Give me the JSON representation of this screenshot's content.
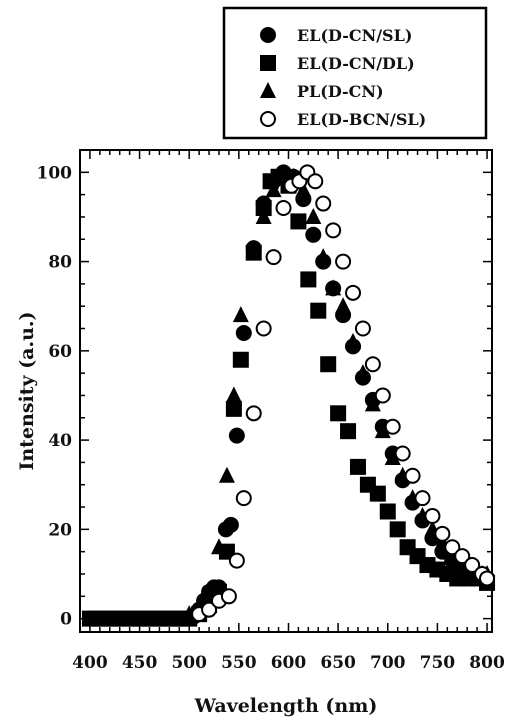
{
  "chart_data": {
    "type": "scatter",
    "xlabel": "Wavelength (nm)",
    "ylabel": "Intensity (a.u.)",
    "xlim": [
      390,
      805
    ],
    "ylim": [
      -3,
      105
    ],
    "x_ticks": [
      400,
      450,
      500,
      550,
      600,
      650,
      700,
      750,
      800
    ],
    "y_ticks": [
      0,
      20,
      40,
      60,
      80,
      100
    ],
    "grid": false,
    "legend_position": "top-right, above plot",
    "series": [
      {
        "name": "EL(D-CN/SL)",
        "marker": "filled-circle",
        "points": [
          [
            400,
            0
          ],
          [
            410,
            0
          ],
          [
            420,
            0
          ],
          [
            430,
            0
          ],
          [
            440,
            0
          ],
          [
            450,
            0
          ],
          [
            460,
            0
          ],
          [
            470,
            0
          ],
          [
            480,
            0
          ],
          [
            490,
            0
          ],
          [
            500,
            0
          ],
          [
            505,
            0.5
          ],
          [
            510,
            2
          ],
          [
            515,
            4
          ],
          [
            520,
            6
          ],
          [
            525,
            7
          ],
          [
            530,
            7
          ],
          [
            537,
            20
          ],
          [
            542,
            21
          ],
          [
            548,
            41
          ],
          [
            555,
            64
          ],
          [
            565,
            83
          ],
          [
            575,
            93
          ],
          [
            585,
            98
          ],
          [
            595,
            100
          ],
          [
            605,
            99
          ],
          [
            615,
            94
          ],
          [
            625,
            86
          ],
          [
            635,
            80
          ],
          [
            645,
            74
          ],
          [
            655,
            68
          ],
          [
            665,
            61
          ],
          [
            675,
            54
          ],
          [
            685,
            49
          ],
          [
            695,
            43
          ],
          [
            705,
            37
          ],
          [
            715,
            31
          ],
          [
            725,
            26
          ],
          [
            735,
            22
          ],
          [
            745,
            18
          ],
          [
            755,
            15
          ],
          [
            765,
            13
          ],
          [
            775,
            11
          ],
          [
            785,
            10
          ],
          [
            795,
            9
          ],
          [
            800,
            9
          ]
        ]
      },
      {
        "name": "EL(D-CN/DL)",
        "marker": "filled-square",
        "points": [
          [
            400,
            0
          ],
          [
            410,
            0
          ],
          [
            420,
            0
          ],
          [
            430,
            0
          ],
          [
            440,
            0
          ],
          [
            450,
            0
          ],
          [
            460,
            0
          ],
          [
            470,
            0
          ],
          [
            480,
            0
          ],
          [
            490,
            0
          ],
          [
            500,
            0
          ],
          [
            510,
            1
          ],
          [
            520,
            3
          ],
          [
            530,
            6
          ],
          [
            538,
            15
          ],
          [
            545,
            47
          ],
          [
            552,
            58
          ],
          [
            565,
            82
          ],
          [
            575,
            92
          ],
          [
            582,
            98
          ],
          [
            590,
            99
          ],
          [
            600,
            97
          ],
          [
            610,
            89
          ],
          [
            620,
            76
          ],
          [
            630,
            69
          ],
          [
            640,
            57
          ],
          [
            650,
            46
          ],
          [
            660,
            42
          ],
          [
            670,
            34
          ],
          [
            680,
            30
          ],
          [
            690,
            28
          ],
          [
            700,
            24
          ],
          [
            710,
            20
          ],
          [
            720,
            16
          ],
          [
            730,
            14
          ],
          [
            740,
            12
          ],
          [
            750,
            11
          ],
          [
            760,
            10
          ],
          [
            770,
            9
          ],
          [
            780,
            9
          ],
          [
            790,
            9
          ],
          [
            800,
            8
          ]
        ]
      },
      {
        "name": "PL(D-CN)",
        "marker": "filled-triangle",
        "points": [
          [
            500,
            1
          ],
          [
            510,
            2
          ],
          [
            520,
            3
          ],
          [
            530,
            16
          ],
          [
            538,
            32
          ],
          [
            545,
            50
          ],
          [
            552,
            68
          ],
          [
            565,
            82
          ],
          [
            575,
            90
          ],
          [
            585,
            96
          ],
          [
            595,
            99
          ],
          [
            605,
            99
          ],
          [
            615,
            96
          ],
          [
            625,
            90
          ],
          [
            635,
            81
          ],
          [
            645,
            74
          ],
          [
            655,
            70
          ],
          [
            665,
            62
          ],
          [
            675,
            55
          ],
          [
            685,
            48
          ],
          [
            695,
            42
          ],
          [
            705,
            36
          ],
          [
            715,
            32
          ],
          [
            725,
            27
          ],
          [
            735,
            23
          ],
          [
            745,
            20
          ],
          [
            755,
            17
          ],
          [
            765,
            14
          ],
          [
            775,
            12
          ],
          [
            785,
            11
          ],
          [
            795,
            10
          ],
          [
            800,
            10
          ]
        ]
      },
      {
        "name": "EL(D-BCN/SL)",
        "marker": "open-circle",
        "points": [
          [
            510,
            1
          ],
          [
            520,
            2
          ],
          [
            530,
            4
          ],
          [
            540,
            5
          ],
          [
            548,
            13
          ],
          [
            555,
            27
          ],
          [
            565,
            46
          ],
          [
            575,
            65
          ],
          [
            585,
            81
          ],
          [
            595,
            92
          ],
          [
            603,
            97
          ],
          [
            611,
            98
          ],
          [
            619,
            100
          ],
          [
            627,
            98
          ],
          [
            635,
            93
          ],
          [
            645,
            87
          ],
          [
            655,
            80
          ],
          [
            665,
            73
          ],
          [
            675,
            65
          ],
          [
            685,
            57
          ],
          [
            695,
            50
          ],
          [
            705,
            43
          ],
          [
            715,
            37
          ],
          [
            725,
            32
          ],
          [
            735,
            27
          ],
          [
            745,
            23
          ],
          [
            755,
            19
          ],
          [
            765,
            16
          ],
          [
            775,
            14
          ],
          [
            785,
            12
          ],
          [
            795,
            10
          ],
          [
            800,
            9
          ]
        ]
      }
    ]
  }
}
